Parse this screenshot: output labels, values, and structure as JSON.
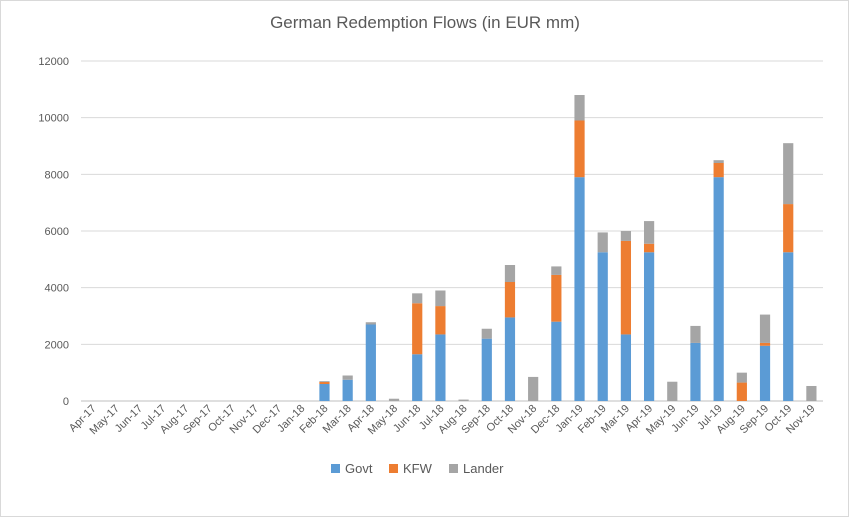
{
  "chart_data": {
    "type": "bar",
    "stacked": true,
    "title": "German Redemption Flows (in EUR mm)",
    "xlabel": "",
    "ylabel": "",
    "ylim": [
      0,
      12000
    ],
    "yticks": [
      0,
      2000,
      4000,
      6000,
      8000,
      10000,
      12000
    ],
    "grid": true,
    "legend_position": "bottom",
    "categories": [
      "Apr-17",
      "May-17",
      "Jun-17",
      "Jul-17",
      "Aug-17",
      "Sep-17",
      "Oct-17",
      "Nov-17",
      "Dec-17",
      "Jan-18",
      "Feb-18",
      "Mar-18",
      "Apr-18",
      "May-18",
      "Jun-18",
      "Jul-18",
      "Aug-18",
      "Sep-18",
      "Oct-18",
      "Nov-18",
      "Dec-18",
      "Jan-19",
      "Feb-19",
      "Mar-19",
      "Apr-19",
      "May-19",
      "Jun-19",
      "Jul-19",
      "Aug-19",
      "Sep-19",
      "Oct-19",
      "Nov-19"
    ],
    "series": [
      {
        "name": "Govt",
        "color": "#5b9bd5",
        "values": [
          0,
          0,
          0,
          0,
          0,
          0,
          0,
          0,
          0,
          0,
          600,
          750,
          2700,
          0,
          1650,
          2350,
          0,
          2200,
          2950,
          0,
          2800,
          7900,
          5250,
          2350,
          5250,
          0,
          2050,
          7900,
          0,
          1950,
          5250,
          0
        ]
      },
      {
        "name": "KFW",
        "color": "#ed7d31",
        "values": [
          0,
          0,
          0,
          0,
          0,
          0,
          0,
          0,
          0,
          0,
          70,
          0,
          0,
          0,
          1800,
          1000,
          0,
          0,
          1250,
          0,
          1650,
          2000,
          0,
          3300,
          300,
          0,
          0,
          500,
          650,
          100,
          1700,
          0
        ]
      },
      {
        "name": "Lander",
        "color": "#a5a5a5",
        "values": [
          0,
          0,
          0,
          0,
          0,
          0,
          0,
          0,
          0,
          0,
          30,
          150,
          80,
          80,
          350,
          550,
          50,
          350,
          600,
          850,
          300,
          900,
          700,
          350,
          800,
          680,
          600,
          100,
          350,
          1000,
          2150,
          530
        ]
      }
    ]
  }
}
